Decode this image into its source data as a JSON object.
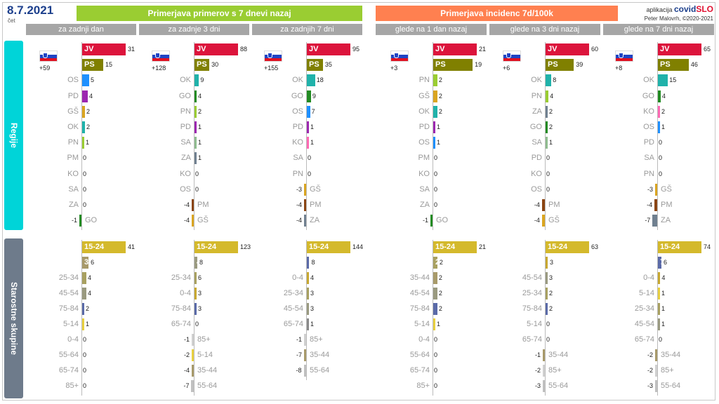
{
  "header": {
    "date": "8.7.2021",
    "weekday": "čet",
    "banner_left": "Primerjava primerov s 7 dnevi nazaj",
    "banner_right": "Primerjava incidenc 7d/100k",
    "brand_prefix": "aplikacija",
    "brand_covid": "covid",
    "brand_slo": "SLO",
    "brand_author": "Peter Malovrh, ©2020-2021"
  },
  "columns": [
    "za zadnji dan",
    "za zadnje 3 dni",
    "za zadnjih 7 dni",
    "glede na 1 dan nazaj",
    "glede na 3 dni nazaj",
    "glede na 7 dni nazaj"
  ],
  "sidebar": {
    "regions": "Regije",
    "age": "Starostne skupine"
  },
  "colors": {
    "JV": "#dc143c",
    "PS": "#808000",
    "OS": "#1e90ff",
    "PD": "#9c27b0",
    "GŠ": "#daa520",
    "OK": "#20b2aa",
    "PN": "#9acd32",
    "PM": "#8b4513",
    "KO": "#ff69b4",
    "SA": "#8fbc8f",
    "ZA": "#708090",
    "GO": "#228b22",
    "15-24": "#d4b92c",
    "35-44": "#a89a6a",
    "25-34": "#a8a060",
    "45-54": "#9a9a80",
    "75-84": "#5a6aa8",
    "5-14": "#e8d040",
    "0-4": "#c8a830",
    "55-64": "#c0c0c0",
    "65-74": "#8a8a8a",
    "85+": "#d0d0d0"
  },
  "chart_data": [
    {
      "type": "bar",
      "title": "za zadnji dan",
      "panel": "Regije",
      "delta": "+59",
      "categories": [
        "JV",
        "PS",
        "OS",
        "PD",
        "GŠ",
        "OK",
        "PN",
        "PM",
        "KO",
        "SA",
        "ZA",
        "GO"
      ],
      "values": [
        31,
        15,
        5,
        4,
        2,
        2,
        1,
        0,
        0,
        0,
        0,
        -1
      ]
    },
    {
      "type": "bar",
      "title": "za zadnje 3 dni",
      "panel": "Regije",
      "delta": "+128",
      "categories": [
        "JV",
        "PS",
        "OK",
        "GO",
        "PN",
        "PD",
        "SA",
        "ZA",
        "KO",
        "OS",
        "PM",
        "GŠ"
      ],
      "values": [
        88,
        30,
        9,
        4,
        2,
        1,
        1,
        1,
        0,
        0,
        -4,
        -4
      ]
    },
    {
      "type": "bar",
      "title": "za zadnjih 7 dni",
      "panel": "Regije",
      "delta": "+155",
      "categories": [
        "JV",
        "PS",
        "OK",
        "GO",
        "OS",
        "PD",
        "KO",
        "SA",
        "PN",
        "GŠ",
        "PM",
        "ZA"
      ],
      "values": [
        95,
        35,
        18,
        9,
        7,
        1,
        1,
        0,
        0,
        -3,
        -4,
        -4
      ]
    },
    {
      "type": "bar",
      "title": "glede na 1 dan nazaj",
      "panel": "Regije",
      "delta": "+3",
      "categories": [
        "JV",
        "PS",
        "PN",
        "GŠ",
        "OK",
        "PD",
        "OS",
        "PM",
        "KO",
        "SA",
        "ZA",
        "GO"
      ],
      "values": [
        21,
        19,
        2,
        2,
        2,
        1,
        1,
        0,
        0,
        0,
        0,
        -1
      ]
    },
    {
      "type": "bar",
      "title": "glede na 3 dni nazaj",
      "panel": "Regije",
      "delta": "+6",
      "categories": [
        "JV",
        "PS",
        "OK",
        "PN",
        "ZA",
        "GO",
        "SA",
        "PD",
        "KO",
        "OS",
        "PM",
        "GŠ"
      ],
      "values": [
        60,
        39,
        8,
        4,
        2,
        2,
        1,
        0,
        0,
        0,
        -4,
        -4
      ]
    },
    {
      "type": "bar",
      "title": "glede na 7 dni nazaj",
      "panel": "Regije",
      "delta": "+8",
      "categories": [
        "JV",
        "PS",
        "OK",
        "GO",
        "KO",
        "OS",
        "PD",
        "SA",
        "PN",
        "GŠ",
        "PM",
        "ZA"
      ],
      "values": [
        65,
        46,
        15,
        4,
        2,
        1,
        0,
        0,
        0,
        -3,
        -4,
        -7
      ]
    },
    {
      "type": "bar",
      "title": "za zadnji dan",
      "panel": "Starostne skupine",
      "categories": [
        "15-24",
        "35-44",
        "25-34",
        "45-54",
        "75-84",
        "5-14",
        "0-4",
        "55-64",
        "65-74",
        "85+"
      ],
      "values": [
        41,
        6,
        4,
        4,
        2,
        1,
        0,
        0,
        0,
        0
      ]
    },
    {
      "type": "bar",
      "title": "za zadnje 3 dni",
      "panel": "Starostne skupine",
      "categories": [
        "15-24",
        "45-54",
        "25-34",
        "0-4",
        "75-84",
        "65-74",
        "85+",
        "5-14",
        "35-44",
        "55-64"
      ],
      "values": [
        123,
        8,
        6,
        3,
        3,
        0,
        -1,
        -2,
        -4,
        -7
      ]
    },
    {
      "type": "bar",
      "title": "za zadnjih 7 dni",
      "panel": "Starostne skupine",
      "categories": [
        "15-24",
        "75-84",
        "0-4",
        "25-34",
        "45-54",
        "65-74",
        "85+",
        "35-44",
        "55-64"
      ],
      "values": [
        144,
        8,
        4,
        3,
        3,
        1,
        -1,
        -7,
        -8
      ]
    },
    {
      "type": "bar",
      "title": "glede na 1 dan nazaj",
      "panel": "Starostne skupine",
      "categories": [
        "15-24",
        "25-34",
        "35-44",
        "45-54",
        "75-84",
        "5-14",
        "0-4",
        "55-64",
        "65-74",
        "85+"
      ],
      "values": [
        21,
        2,
        2,
        2,
        2,
        1,
        0,
        0,
        0,
        0
      ]
    },
    {
      "type": "bar",
      "title": "glede na 3 dni nazaj",
      "panel": "Starostne skupine",
      "categories": [
        "15-24",
        "0-4",
        "45-54",
        "25-34",
        "75-84",
        "5-14",
        "65-74",
        "35-44",
        "85+",
        "55-64"
      ],
      "values": [
        63,
        3,
        3,
        2,
        2,
        0,
        0,
        -1,
        -2,
        -3
      ]
    },
    {
      "type": "bar",
      "title": "glede na 7 dni nazaj",
      "panel": "Starostne skupine",
      "categories": [
        "15-24",
        "75-84",
        "0-4",
        "5-14",
        "25-34",
        "45-54",
        "65-74",
        "35-44",
        "85+",
        "55-64"
      ],
      "values": [
        74,
        6,
        4,
        1,
        1,
        1,
        0,
        -2,
        -2,
        -3
      ]
    }
  ]
}
